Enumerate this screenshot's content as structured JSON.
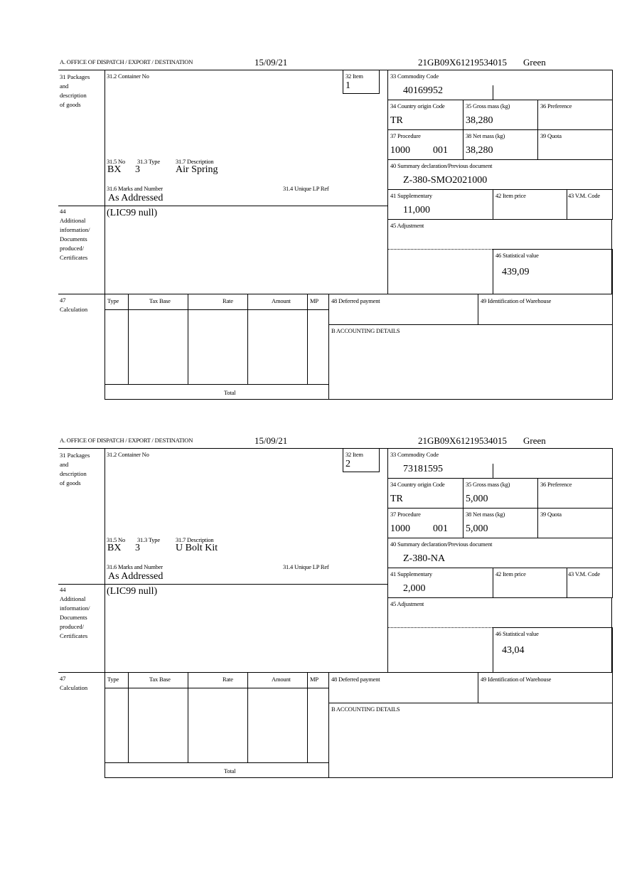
{
  "labels": {
    "office": "A.  OFFICE OF DISPATCH / EXPORT / DESTINATION",
    "packages": "31 Packages\nand\ndescription\nof goods",
    "container_no": "31.2 Container No",
    "item": "32 Item",
    "no": "31.5 No",
    "type": "31.3 Type",
    "description": "31.7 Description",
    "marks": "31.6 Marks and Number",
    "unique_lp_ref": "31.4 Unique LP Ref",
    "additional": "44\nAdditional\ninformation/\nDocuments\nproduced/\nCertificates",
    "commodity_code": "33 Commodity Code",
    "country_origin": "34 Country origin Code",
    "gross_mass": "35 Gross mass (kg)",
    "preference": "36 Preference",
    "procedure": "37 Procedure",
    "net_mass": "38 Net mass (kg)",
    "quota": "39 Quota",
    "summary_declaration": "40 Summary declaration/Previous document",
    "supplementary": "41 Supplementary",
    "item_price": "42 Item price",
    "vm_code": "43 V.M. Code",
    "adjustment": "45 Adjustment",
    "statistical_value": "46 Statistical value",
    "calculation": "47\nCalculation",
    "col_type": "Type",
    "col_tax_base": "Tax Base",
    "col_rate": "Rate",
    "col_amount": "Amount",
    "col_mp": "MP",
    "deferred_payment": "48 Deferred payment",
    "warehouse": "49 Identification of Warehouse",
    "accounting": "B ACCOUNTING DETAILS",
    "total": "Total"
  },
  "forms": [
    {
      "date": "15/09/21",
      "reference": "21GB09X61219534015",
      "route": "Green",
      "item": "1",
      "package_no": "BX",
      "package_type": "3",
      "description": "Air Spring",
      "marks": "As Addressed",
      "additional_info": "(LIC99 null)",
      "commodity_code": "40169952",
      "country_origin": "TR",
      "gross_mass": "38,280",
      "procedure": "1000",
      "procedure_additional": "001",
      "net_mass": "38,280",
      "summary_declaration": "Z-380-SMO2021000",
      "supplementary": "11,000",
      "statistical_value": "439,09"
    },
    {
      "date": "15/09/21",
      "reference": "21GB09X61219534015",
      "route": "Green",
      "item": "2",
      "package_no": "BX",
      "package_type": "3",
      "description": "U Bolt Kit",
      "marks": "As Addressed",
      "additional_info": "(LIC99 null)",
      "commodity_code": "73181595",
      "country_origin": "TR",
      "gross_mass": "5,000",
      "procedure": "1000",
      "procedure_additional": "001",
      "net_mass": "5,000",
      "summary_declaration": "Z-380-NA",
      "supplementary": "2,000",
      "statistical_value": "43,04"
    }
  ]
}
